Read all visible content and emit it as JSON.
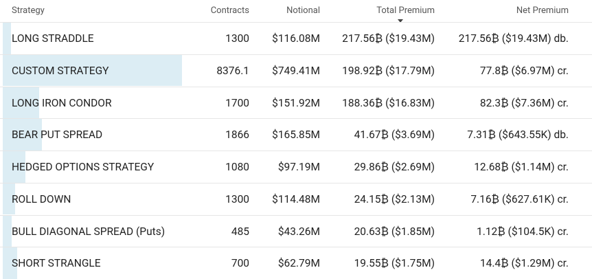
{
  "table": {
    "header": [
      "Strategy",
      "Contracts",
      "Notional",
      "Total Premium",
      "Net Premium"
    ],
    "rows": [
      [
        "LONG STRADDLE",
        "1300",
        "$116.08M",
        "217.56₿ ($19.43M)",
        "217.56₿ ($19.43M) db."
      ],
      [
        "CUSTOM STRATEGY",
        "8376.1",
        "$749.41M",
        "198.92₿ ($17.79M)",
        "77.8₿ ($6.97M) cr."
      ],
      [
        "LONG IRON CONDOR",
        "1700",
        "$151.92M",
        "188.36₿ ($16.83M)",
        "82.3₿ ($7.36M) cr."
      ],
      [
        "BEAR PUT SPREAD",
        "1866",
        "$165.85M",
        "41.67₿ ($3.69M)",
        "7.31₿ ($643.55K) db."
      ],
      [
        "HEDGED OPTIONS STRATEGY",
        "1080",
        "$97.19M",
        "29.86₿ ($2.69M)",
        "12.68₿ ($1.14M) cr."
      ],
      [
        "ROLL DOWN",
        "1300",
        "$114.48M",
        "24.15₿ ($2.13M)",
        "7.16₿ ($627.61K) cr."
      ],
      [
        "BULL DIAGONAL SPREAD (Puts)",
        "485",
        "$43.26M",
        "20.63₿ ($1.85M)",
        "1.12₿ ($104.5K) cr."
      ],
      [
        "SHORT STRANGLE",
        "700",
        "$62.79M",
        "19.55₿ ($1.75M)",
        "14.4₿ ($1.29M) cr."
      ]
    ]
  }
}
